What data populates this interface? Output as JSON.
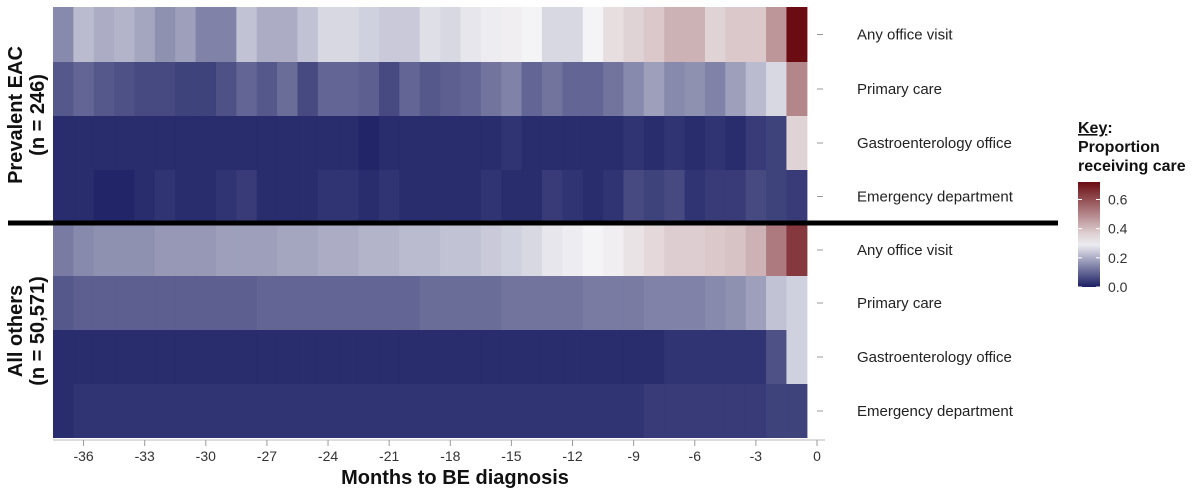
{
  "chart_data": {
    "type": "heatmap",
    "title": "",
    "xlabel": "Months to BE diagnosis",
    "ylabel": "",
    "x": [
      -37,
      -36,
      -35,
      -34,
      -33,
      -32,
      -31,
      -30,
      -29,
      -28,
      -27,
      -26,
      -25,
      -24,
      -23,
      -22,
      -21,
      -20,
      -19,
      -18,
      -17,
      -16,
      -15,
      -14,
      -13,
      -12,
      -11,
      -10,
      -9,
      -8,
      -7,
      -6,
      -5,
      -4,
      -3,
      -2,
      -1
    ],
    "xlim": [
      -37.5,
      0
    ],
    "x_ticks": [
      -36,
      -33,
      -30,
      -27,
      -24,
      -21,
      -18,
      -15,
      -12,
      -9,
      -6,
      -3,
      0
    ],
    "color_scale": {
      "low": "#1b1f63",
      "mid": "#f4f4f6",
      "high": "#6b0c12",
      "midpoint": 0.3,
      "range": [
        0,
        0.72
      ],
      "ticks": [
        0.0,
        0.2,
        0.4,
        0.6
      ],
      "tick_labels": [
        "0.0",
        "0.2",
        "0.4",
        "0.6"
      ]
    },
    "legend": {
      "title_line1": "Key",
      "title_suffix": ":",
      "title_line2": "Proportion",
      "title_line3": "receiving care",
      "position": "right"
    },
    "groups": [
      {
        "label_line1": "Prevalent EAC",
        "label_line2": "(n = 246)",
        "rows": [
          {
            "name": "Any office visit",
            "values": [
              0.15,
              0.22,
              0.2,
              0.21,
              0.19,
              0.16,
              0.18,
              0.14,
              0.14,
              0.23,
              0.2,
              0.2,
              0.23,
              0.26,
              0.26,
              0.25,
              0.24,
              0.24,
              0.27,
              0.26,
              0.28,
              0.29,
              0.31,
              0.3,
              0.26,
              0.26,
              0.3,
              0.34,
              0.36,
              0.38,
              0.42,
              0.42,
              0.36,
              0.38,
              0.38,
              0.47,
              0.72
            ]
          },
          {
            "name": "Primary care",
            "values": [
              0.08,
              0.1,
              0.08,
              0.07,
              0.06,
              0.06,
              0.05,
              0.05,
              0.07,
              0.1,
              0.08,
              0.11,
              0.06,
              0.1,
              0.1,
              0.09,
              0.06,
              0.1,
              0.08,
              0.09,
              0.1,
              0.12,
              0.14,
              0.1,
              0.12,
              0.1,
              0.1,
              0.12,
              0.15,
              0.18,
              0.15,
              0.16,
              0.14,
              0.18,
              0.22,
              0.26,
              0.5
            ]
          },
          {
            "name": "Gastroenterology office",
            "values": [
              0.02,
              0.02,
              0.02,
              0.02,
              0.02,
              0.02,
              0.02,
              0.02,
              0.02,
              0.02,
              0.02,
              0.02,
              0.02,
              0.02,
              0.02,
              0.01,
              0.02,
              0.02,
              0.02,
              0.02,
              0.02,
              0.02,
              0.03,
              0.02,
              0.02,
              0.02,
              0.02,
              0.02,
              0.03,
              0.02,
              0.03,
              0.02,
              0.03,
              0.02,
              0.04,
              0.05,
              0.36
            ]
          },
          {
            "name": "Emergency department",
            "values": [
              0.02,
              0.02,
              0.01,
              0.01,
              0.02,
              0.03,
              0.02,
              0.02,
              0.03,
              0.04,
              0.02,
              0.02,
              0.02,
              0.03,
              0.03,
              0.02,
              0.03,
              0.02,
              0.02,
              0.02,
              0.02,
              0.03,
              0.02,
              0.02,
              0.04,
              0.03,
              0.02,
              0.03,
              0.06,
              0.05,
              0.06,
              0.03,
              0.04,
              0.04,
              0.06,
              0.05,
              0.04
            ]
          }
        ]
      },
      {
        "label_line1": "All others",
        "label_line2": "(n = 50,571)",
        "rows": [
          {
            "name": "Any office visit",
            "values": [
              0.13,
              0.15,
              0.16,
              0.16,
              0.16,
              0.17,
              0.17,
              0.17,
              0.18,
              0.18,
              0.18,
              0.19,
              0.19,
              0.2,
              0.2,
              0.21,
              0.21,
              0.22,
              0.22,
              0.23,
              0.23,
              0.24,
              0.25,
              0.26,
              0.28,
              0.29,
              0.3,
              0.31,
              0.33,
              0.35,
              0.37,
              0.37,
              0.38,
              0.39,
              0.42,
              0.52,
              0.64
            ]
          },
          {
            "name": "Primary care",
            "values": [
              0.08,
              0.09,
              0.09,
              0.09,
              0.09,
              0.09,
              0.09,
              0.09,
              0.09,
              0.09,
              0.1,
              0.1,
              0.1,
              0.1,
              0.1,
              0.1,
              0.1,
              0.1,
              0.11,
              0.11,
              0.11,
              0.11,
              0.12,
              0.12,
              0.12,
              0.12,
              0.13,
              0.13,
              0.13,
              0.14,
              0.14,
              0.14,
              0.15,
              0.16,
              0.18,
              0.23,
              0.25
            ]
          },
          {
            "name": "Gastroenterology office",
            "values": [
              0.02,
              0.02,
              0.02,
              0.02,
              0.02,
              0.02,
              0.02,
              0.02,
              0.02,
              0.02,
              0.02,
              0.02,
              0.02,
              0.02,
              0.02,
              0.02,
              0.02,
              0.02,
              0.02,
              0.02,
              0.02,
              0.02,
              0.02,
              0.02,
              0.02,
              0.02,
              0.02,
              0.02,
              0.02,
              0.02,
              0.03,
              0.03,
              0.03,
              0.03,
              0.03,
              0.07,
              0.25
            ]
          },
          {
            "name": "Emergency department",
            "values": [
              0.02,
              0.03,
              0.03,
              0.03,
              0.03,
              0.03,
              0.03,
              0.03,
              0.03,
              0.03,
              0.03,
              0.03,
              0.03,
              0.03,
              0.03,
              0.03,
              0.03,
              0.03,
              0.03,
              0.03,
              0.03,
              0.03,
              0.03,
              0.03,
              0.03,
              0.03,
              0.03,
              0.03,
              0.03,
              0.04,
              0.04,
              0.04,
              0.04,
              0.04,
              0.04,
              0.05,
              0.05
            ]
          }
        ]
      }
    ]
  }
}
